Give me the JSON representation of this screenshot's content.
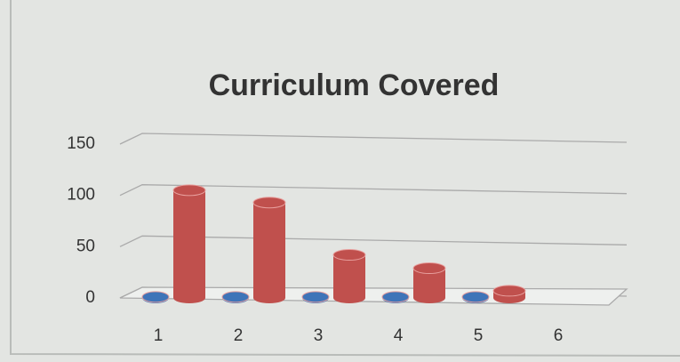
{
  "chart_data": {
    "type": "bar3d",
    "title": "Curriculum Covered",
    "categories": [
      "1",
      "2",
      "3",
      "4",
      "5",
      "6"
    ],
    "series": [
      {
        "color": "#3f74b8",
        "values": [
          1,
          1,
          1,
          1,
          1,
          null
        ]
      },
      {
        "color": "#c0504d",
        "values": [
          105,
          93,
          42,
          29,
          7,
          null
        ]
      }
    ],
    "ylim": [
      0,
      150
    ],
    "yticks": [
      0,
      50,
      100,
      150
    ],
    "grid": true
  }
}
